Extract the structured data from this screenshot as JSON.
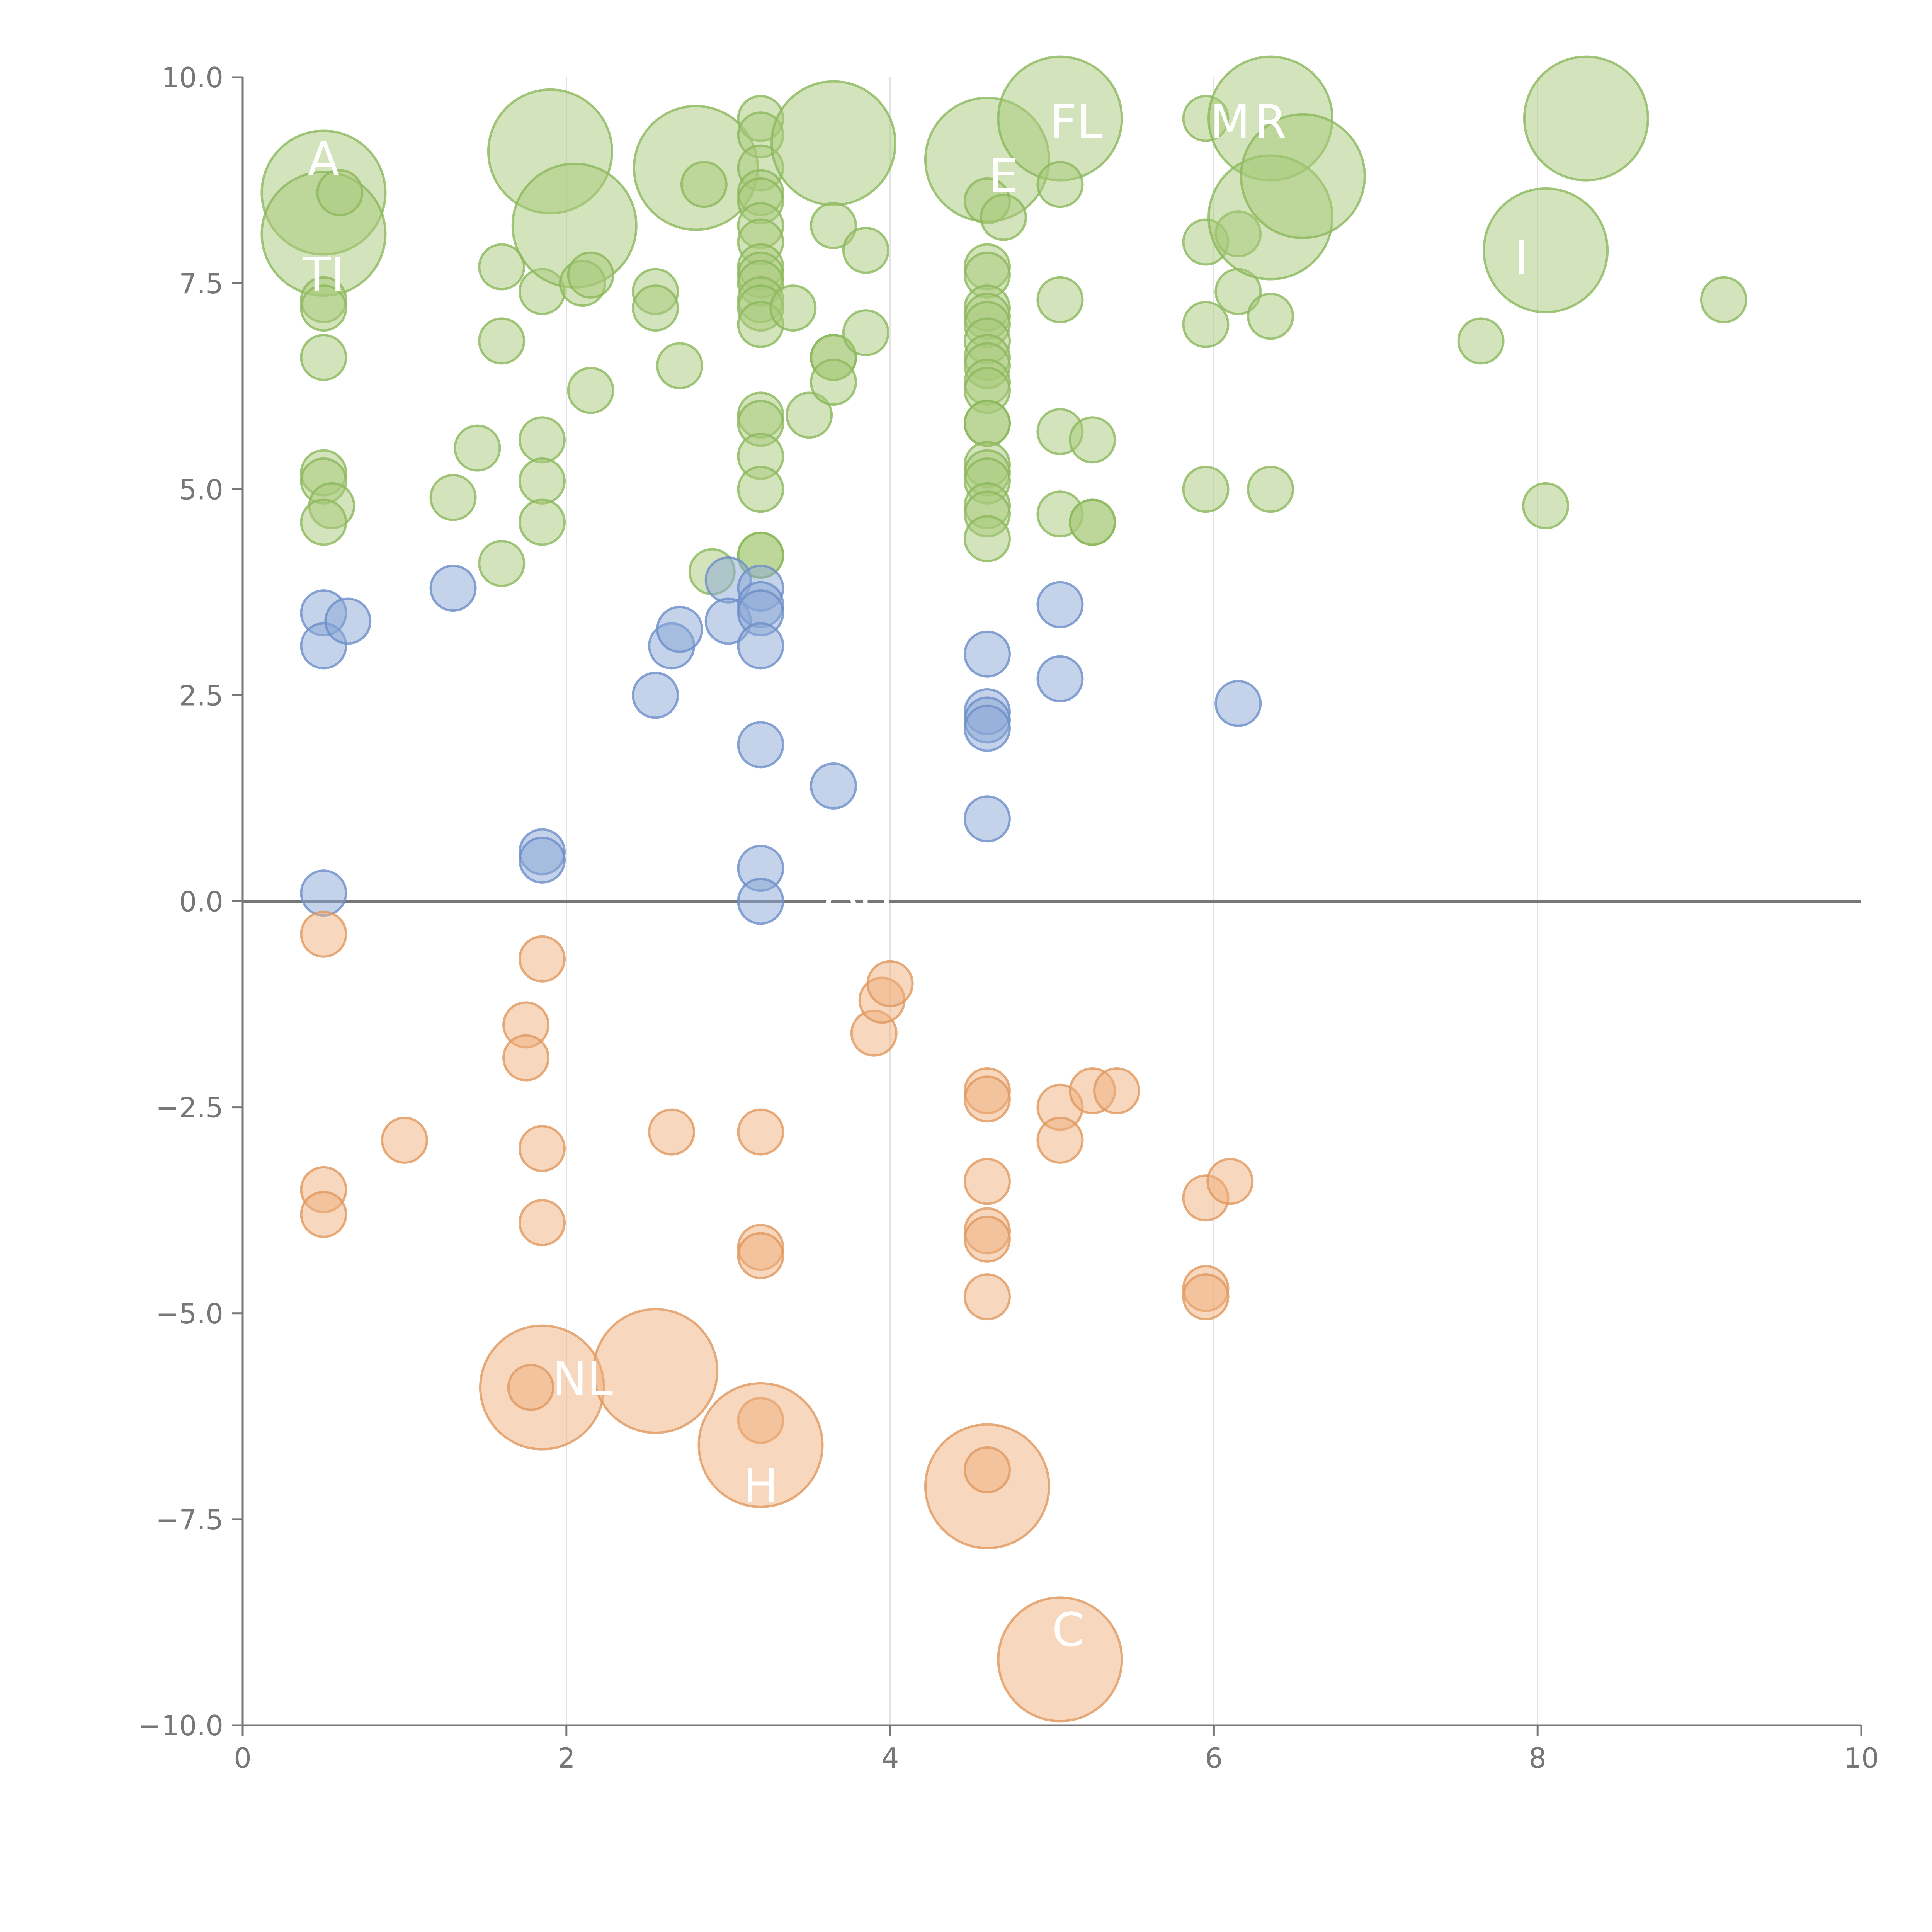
{
  "chart_data": {
    "type": "scatter",
    "title": "",
    "xlabel": "",
    "ylabel": "",
    "xlim": [
      0,
      10
    ],
    "ylim": [
      -10,
      10
    ],
    "x_ticks": [
      0,
      2,
      4,
      6,
      8,
      10
    ],
    "x_tick_labels": [
      "0",
      "2",
      "4",
      "6",
      "8",
      "10"
    ],
    "y_ticks": [
      10,
      7.5,
      5,
      2.5,
      0,
      -2.5,
      -5,
      -7.5,
      -10
    ],
    "y_tick_labels": [
      "10.0",
      "7.5",
      "5.0",
      "2.5",
      "0.0",
      "−2.5",
      "−5.0",
      "−7.5",
      "−10.0"
    ],
    "x_gridlines": [
      2,
      4,
      6,
      8
    ],
    "zero_line": 0,
    "legend": "none",
    "colors": {
      "green_fill": "#a8c97a",
      "green_stroke": "#8cb85c",
      "blue_fill": "#8aa8d6",
      "blue_stroke": "#6d8fc8",
      "orange_fill": "#f0b07e",
      "orange_stroke": "#e0985f"
    },
    "series": [
      {
        "color_key": "green",
        "points": [
          [
            0.5,
            8.6,
            2
          ],
          [
            0.5,
            8.1,
            2
          ],
          [
            0.6,
            8.6,
            0
          ],
          [
            0.5,
            7.3,
            0
          ],
          [
            0.5,
            7.2,
            0
          ],
          [
            0.5,
            6.6,
            0
          ],
          [
            0.5,
            5.2,
            0
          ],
          [
            0.5,
            5.1,
            0
          ],
          [
            0.55,
            4.8,
            0
          ],
          [
            0.5,
            4.6,
            0
          ],
          [
            1.3,
            4.9,
            0
          ],
          [
            1.45,
            5.5,
            0
          ],
          [
            1.6,
            7.7,
            0
          ],
          [
            1.6,
            6.8,
            0
          ],
          [
            1.6,
            4.1,
            0
          ],
          [
            1.85,
            7.4,
            0
          ],
          [
            1.85,
            5.6,
            0
          ],
          [
            1.85,
            5.1,
            0
          ],
          [
            1.85,
            4.6,
            0
          ],
          [
            1.9,
            9.1,
            2
          ],
          [
            2.05,
            8.2,
            2
          ],
          [
            2.1,
            7.5,
            0
          ],
          [
            2.15,
            7.6,
            0
          ],
          [
            2.15,
            6.2,
            0
          ],
          [
            2.55,
            7.4,
            0
          ],
          [
            2.55,
            7.2,
            0
          ],
          [
            2.7,
            6.5,
            0
          ],
          [
            2.8,
            8.9,
            2
          ],
          [
            2.85,
            8.7,
            0
          ],
          [
            2.9,
            4.0,
            0
          ],
          [
            3.2,
            9.5,
            0
          ],
          [
            3.2,
            9.3,
            0
          ],
          [
            3.2,
            8.9,
            0
          ],
          [
            3.2,
            8.6,
            0
          ],
          [
            3.2,
            8.5,
            0
          ],
          [
            3.2,
            8.2,
            0
          ],
          [
            3.2,
            8.0,
            0
          ],
          [
            3.2,
            7.7,
            0
          ],
          [
            3.2,
            7.6,
            0
          ],
          [
            3.2,
            7.5,
            0
          ],
          [
            3.2,
            7.3,
            0
          ],
          [
            3.2,
            7.2,
            0
          ],
          [
            3.2,
            7.0,
            0
          ],
          [
            3.2,
            5.9,
            0
          ],
          [
            3.2,
            5.8,
            0
          ],
          [
            3.2,
            5.4,
            0
          ],
          [
            3.2,
            5.0,
            0
          ],
          [
            3.2,
            4.2,
            0
          ],
          [
            3.2,
            4.2,
            0
          ],
          [
            3.4,
            7.2,
            0
          ],
          [
            3.5,
            5.9,
            0
          ],
          [
            3.65,
            9.2,
            2
          ],
          [
            3.65,
            8.2,
            0
          ],
          [
            3.65,
            6.6,
            0
          ],
          [
            3.65,
            6.6,
            0
          ],
          [
            3.65,
            6.3,
            0
          ],
          [
            3.85,
            7.9,
            0
          ],
          [
            3.85,
            6.9,
            0
          ],
          [
            4.6,
            9.0,
            2
          ],
          [
            4.6,
            8.5,
            0
          ],
          [
            4.7,
            8.3,
            0
          ],
          [
            4.6,
            7.7,
            0
          ],
          [
            4.6,
            7.6,
            0
          ],
          [
            4.6,
            7.2,
            0
          ],
          [
            4.6,
            7.1,
            0
          ],
          [
            4.6,
            7.0,
            0
          ],
          [
            4.6,
            6.8,
            0
          ],
          [
            4.6,
            6.6,
            0
          ],
          [
            4.6,
            6.5,
            0
          ],
          [
            4.6,
            6.3,
            0
          ],
          [
            4.6,
            6.2,
            0
          ],
          [
            4.6,
            5.8,
            0
          ],
          [
            4.6,
            5.8,
            0
          ],
          [
            4.6,
            5.3,
            0
          ],
          [
            4.6,
            5.2,
            0
          ],
          [
            4.6,
            5.1,
            0
          ],
          [
            4.6,
            4.8,
            0
          ],
          [
            4.6,
            4.7,
            0
          ],
          [
            4.6,
            4.4,
            0
          ],
          [
            5.05,
            9.5,
            2
          ],
          [
            5.05,
            8.7,
            0
          ],
          [
            5.05,
            7.3,
            0
          ],
          [
            5.05,
            5.7,
            0
          ],
          [
            5.05,
            4.7,
            0
          ],
          [
            5.25,
            5.6,
            0
          ],
          [
            5.25,
            4.6,
            0
          ],
          [
            5.25,
            4.6,
            0
          ],
          [
            5.95,
            9.5,
            0
          ],
          [
            5.95,
            8.0,
            0
          ],
          [
            5.95,
            7.0,
            0
          ],
          [
            5.95,
            5.0,
            0
          ],
          [
            6.15,
            8.1,
            0
          ],
          [
            6.15,
            7.4,
            0
          ],
          [
            6.35,
            9.5,
            2
          ],
          [
            6.35,
            8.3,
            2
          ],
          [
            6.35,
            7.1,
            0
          ],
          [
            6.35,
            5.0,
            0
          ],
          [
            6.55,
            8.8,
            2
          ],
          [
            7.65,
            6.8,
            0
          ],
          [
            8.05,
            7.9,
            2
          ],
          [
            8.05,
            4.8,
            0
          ],
          [
            8.3,
            9.5,
            2
          ],
          [
            9.15,
            7.3,
            0
          ]
        ]
      },
      {
        "color_key": "blue",
        "points": [
          [
            0.5,
            3.5,
            0
          ],
          [
            0.5,
            3.1,
            0
          ],
          [
            0.65,
            3.4,
            0
          ],
          [
            0.5,
            0.1,
            0
          ],
          [
            1.3,
            3.8,
            0
          ],
          [
            1.85,
            0.6,
            0
          ],
          [
            1.85,
            0.5,
            0
          ],
          [
            2.55,
            2.5,
            0
          ],
          [
            2.65,
            3.1,
            0
          ],
          [
            2.7,
            3.3,
            0
          ],
          [
            3.0,
            3.9,
            0
          ],
          [
            3.0,
            3.4,
            0
          ],
          [
            3.2,
            3.8,
            0
          ],
          [
            3.2,
            3.6,
            0
          ],
          [
            3.2,
            3.5,
            0
          ],
          [
            3.2,
            3.1,
            0
          ],
          [
            3.2,
            1.9,
            0
          ],
          [
            3.2,
            0.4,
            0
          ],
          [
            3.2,
            0.0,
            0
          ],
          [
            3.65,
            1.4,
            0
          ],
          [
            4.6,
            3.0,
            0
          ],
          [
            4.6,
            2.3,
            0
          ],
          [
            4.6,
            2.2,
            0
          ],
          [
            4.6,
            2.1,
            0
          ],
          [
            4.6,
            1.0,
            0
          ],
          [
            5.05,
            3.6,
            0
          ],
          [
            5.05,
            2.7,
            0
          ],
          [
            6.15,
            2.4,
            0
          ]
        ]
      },
      {
        "color_key": "orange",
        "points": [
          [
            0.5,
            -0.4,
            0
          ],
          [
            0.5,
            -3.5,
            0
          ],
          [
            0.5,
            -3.8,
            0
          ],
          [
            1.0,
            -2.9,
            0
          ],
          [
            1.75,
            -1.5,
            0
          ],
          [
            1.75,
            -1.9,
            0
          ],
          [
            1.85,
            -0.7,
            0
          ],
          [
            1.85,
            -3.0,
            0
          ],
          [
            1.85,
            -3.9,
            0
          ],
          [
            1.85,
            -5.9,
            2
          ],
          [
            1.78,
            -5.9,
            0
          ],
          [
            2.55,
            -5.7,
            2
          ],
          [
            2.65,
            -2.8,
            0
          ],
          [
            3.2,
            -2.8,
            0
          ],
          [
            3.2,
            -4.2,
            0
          ],
          [
            3.2,
            -4.3,
            0
          ],
          [
            3.2,
            -6.3,
            0
          ],
          [
            3.2,
            -6.6,
            2
          ],
          [
            3.9,
            -1.6,
            0
          ],
          [
            3.95,
            -1.2,
            0
          ],
          [
            4.0,
            -1.0,
            0
          ],
          [
            4.6,
            -2.3,
            0
          ],
          [
            4.6,
            -2.4,
            0
          ],
          [
            4.6,
            -3.4,
            0
          ],
          [
            4.6,
            -4.0,
            0
          ],
          [
            4.6,
            -4.1,
            0
          ],
          [
            4.6,
            -4.8,
            0
          ],
          [
            4.6,
            -7.1,
            2
          ],
          [
            4.6,
            -6.9,
            0
          ],
          [
            5.05,
            -2.5,
            0
          ],
          [
            5.05,
            -2.9,
            0
          ],
          [
            5.25,
            -2.3,
            0
          ],
          [
            5.4,
            -2.3,
            0
          ],
          [
            5.05,
            -9.2,
            2
          ],
          [
            5.95,
            -3.6,
            0
          ],
          [
            5.95,
            -4.7,
            0
          ],
          [
            5.95,
            -4.8,
            0
          ],
          [
            6.1,
            -3.4,
            0
          ]
        ]
      }
    ],
    "annotations": [
      {
        "text": "FL",
        "x": 5.15,
        "y": 9.45
      },
      {
        "text": "M",
        "x": 6.1,
        "y": 9.45
      },
      {
        "text": "R",
        "x": 6.35,
        "y": 9.45
      },
      {
        "text": "A",
        "x": 0.5,
        "y": 9.0
      },
      {
        "text": "E",
        "x": 4.7,
        "y": 8.8
      },
      {
        "text": "TI",
        "x": 0.5,
        "y": 7.6
      },
      {
        "text": "I",
        "x": 7.9,
        "y": 7.8
      },
      {
        "text": "QU",
        "x": 3.8,
        "y": -0.1
      },
      {
        "text": "NL",
        "x": 2.1,
        "y": -5.8
      },
      {
        "text": "H",
        "x": 3.2,
        "y": -7.1
      },
      {
        "text": "C",
        "x": 5.1,
        "y": -8.85
      }
    ]
  }
}
